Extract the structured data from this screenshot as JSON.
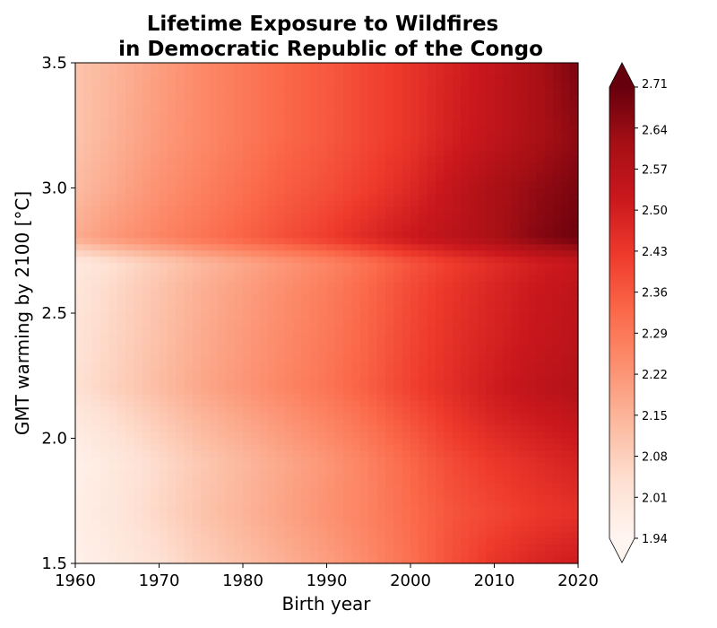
{
  "chart_data": {
    "type": "heatmap",
    "title_line1": "Lifetime Exposure to Wildfires",
    "title_line2": "in Democratic Republic of the Congo",
    "xlabel": "Birth year",
    "ylabel": "GMT warming by 2100 [°C]",
    "xlim": [
      1960,
      2020
    ],
    "ylim": [
      1.5,
      3.5
    ],
    "x_ticks": [
      "1960",
      "1970",
      "1980",
      "1990",
      "2000",
      "2010",
      "2020"
    ],
    "y_ticks": [
      "1.5",
      "2.0",
      "2.5",
      "3.0",
      "3.5"
    ],
    "colormap": "Reds",
    "colorbar": {
      "extend": "both",
      "range": [
        1.94,
        2.71
      ],
      "ticks": [
        "1.94",
        "2.01",
        "2.08",
        "2.15",
        "2.22",
        "2.29",
        "2.36",
        "2.43",
        "2.50",
        "2.57",
        "2.64",
        "2.71"
      ],
      "colors": [
        "#fff5f0",
        "#fee0d2",
        "#fcbba1",
        "#fc9272",
        "#fb6a4a",
        "#ef3b2c",
        "#cb181d",
        "#a50f15",
        "#67000d"
      ]
    },
    "x": [
      1960,
      1965,
      1970,
      1975,
      1980,
      1985,
      1990,
      1995,
      2000,
      2005,
      2010,
      2015,
      2020
    ],
    "y": [
      1.5,
      1.7,
      1.9,
      2.1,
      2.2,
      2.4,
      2.6,
      2.7,
      2.8,
      3.0,
      3.2,
      3.5
    ],
    "z": [
      [
        1.96,
        1.99,
        2.03,
        2.08,
        2.12,
        2.16,
        2.2,
        2.25,
        2.31,
        2.38,
        2.44,
        2.48,
        2.51
      ],
      [
        1.97,
        2.01,
        2.06,
        2.11,
        2.15,
        2.19,
        2.23,
        2.27,
        2.32,
        2.37,
        2.4,
        2.43,
        2.45
      ],
      [
        1.96,
        2.0,
        2.05,
        2.1,
        2.14,
        2.18,
        2.22,
        2.27,
        2.33,
        2.39,
        2.43,
        2.46,
        2.49
      ],
      [
        2.0,
        2.05,
        2.1,
        2.15,
        2.19,
        2.23,
        2.27,
        2.32,
        2.38,
        2.44,
        2.49,
        2.52,
        2.55
      ],
      [
        2.03,
        2.08,
        2.13,
        2.18,
        2.22,
        2.26,
        2.3,
        2.35,
        2.41,
        2.46,
        2.51,
        2.55,
        2.58
      ],
      [
        2.02,
        2.07,
        2.12,
        2.17,
        2.21,
        2.25,
        2.29,
        2.34,
        2.4,
        2.45,
        2.49,
        2.53,
        2.56
      ],
      [
        2.01,
        2.06,
        2.11,
        2.16,
        2.2,
        2.24,
        2.28,
        2.33,
        2.39,
        2.44,
        2.48,
        2.52,
        2.55
      ],
      [
        1.99,
        2.04,
        2.09,
        2.14,
        2.18,
        2.22,
        2.26,
        2.31,
        2.37,
        2.42,
        2.46,
        2.5,
        2.53
      ],
      [
        2.17,
        2.22,
        2.26,
        2.3,
        2.34,
        2.38,
        2.42,
        2.47,
        2.52,
        2.56,
        2.6,
        2.66,
        2.7
      ],
      [
        2.13,
        2.18,
        2.23,
        2.27,
        2.31,
        2.35,
        2.38,
        2.42,
        2.47,
        2.54,
        2.6,
        2.64,
        2.68
      ],
      [
        2.11,
        2.16,
        2.21,
        2.25,
        2.29,
        2.33,
        2.36,
        2.4,
        2.44,
        2.5,
        2.55,
        2.6,
        2.65
      ],
      [
        2.11,
        2.15,
        2.2,
        2.25,
        2.29,
        2.33,
        2.36,
        2.4,
        2.44,
        2.49,
        2.54,
        2.6,
        2.68
      ]
    ]
  }
}
